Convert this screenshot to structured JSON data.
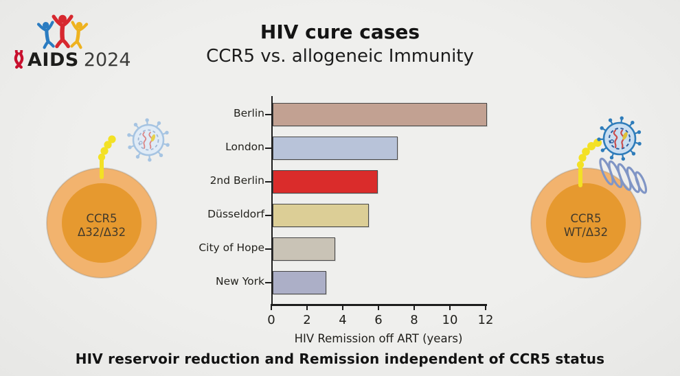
{
  "logo": {
    "text_bold": "AIDS",
    "text_year": "2024",
    "colors": {
      "blue": "#2b7cc1",
      "red": "#d7282f",
      "yellow": "#eeb21f",
      "ribbon": "#c8102e"
    }
  },
  "header": {
    "title": "HIV cure cases",
    "subtitle": "CCR5 vs. allogeneic Immunity"
  },
  "chart_data": {
    "type": "bar",
    "orientation": "horizontal",
    "categories": [
      "Berlin",
      "London",
      "2nd Berlin",
      "Düsseldorf",
      "City of Hope",
      "New York"
    ],
    "values": [
      12,
      7,
      5.9,
      5.4,
      3.5,
      3
    ],
    "bar_colors": [
      "#c2a192",
      "#b8c3d9",
      "#da2c2b",
      "#dcce96",
      "#c9c3b6",
      "#acafc7"
    ],
    "title": "",
    "xlabel": "HIV Remission off ART (years)",
    "ylabel": "",
    "xlim": [
      0,
      12
    ],
    "xticks": [
      0,
      2,
      4,
      6,
      8,
      10,
      12
    ],
    "grid": false,
    "legend": "none"
  },
  "left_cell": {
    "label_line1": "CCR5",
    "label_line2": "Δ32/Δ32",
    "virus_state": "unbound"
  },
  "right_cell": {
    "label_line1": "CCR5",
    "label_line2": "WT/Δ32",
    "virus_state": "bound"
  },
  "caption": "HIV reservoir reduction and Remission independent of CCR5 status",
  "icons": {
    "aids-figures-icon": "three cheering people (blue, red, yellow)",
    "red-ribbon-icon": "AIDS awareness ribbon",
    "hiv-virion-icon": "spiked circle with RNA squiggles",
    "ccr5-delta32-receptor-icon": "truncated yellow beaded receptor",
    "ccr5-wt-receptor-icon": "blue seven-loop transmembrane coil",
    "cd4-cell-icon": "orange cell with nucleus"
  },
  "colors": {
    "background": "#ececea",
    "cell_outer": "#f2b36e",
    "cell_inner": "#e6992f",
    "receptor_yellow": "#f3e125",
    "virus_pale": "#a6c4e2",
    "virus_bound": "#2e7cba",
    "rna_red": "#c94c4c",
    "axis": "#1c1c1c"
  }
}
